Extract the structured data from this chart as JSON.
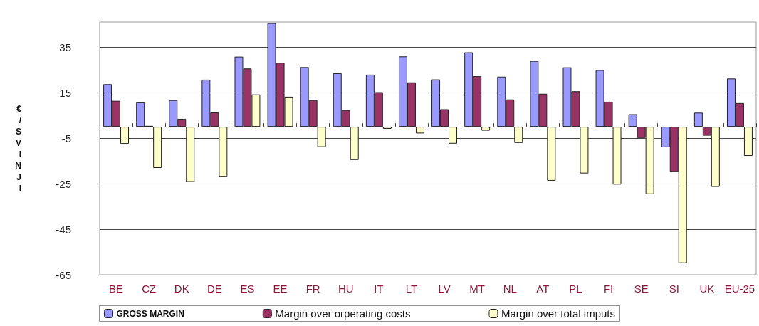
{
  "chart_data": {
    "type": "bar",
    "ylabel": "€ / SVINJI",
    "categories": [
      "BE",
      "CZ",
      "DK",
      "DE",
      "ES",
      "EE",
      "FR",
      "HU",
      "IT",
      "LT",
      "LV",
      "MT",
      "NL",
      "AT",
      "PL",
      "FI",
      "SE",
      "SI",
      "UK",
      "EU-25"
    ],
    "series": [
      {
        "name": "GROSS MARGIN",
        "color": "#9999ff",
        "values": [
          18.7,
          10.7,
          11.7,
          20.7,
          30.8,
          45.5,
          26.2,
          23.5,
          22.9,
          30.9,
          20.8,
          32.7,
          22.0,
          28.9,
          26.1,
          24.9,
          5.5,
          -9.0,
          6.2,
          21.2
        ]
      },
      {
        "name": "Margin over orperating costs",
        "color": "#993366",
        "values": [
          11.4,
          0.4,
          3.5,
          6.3,
          25.6,
          28.1,
          11.7,
          7.3,
          15.2,
          19.5,
          7.7,
          22.2,
          12.0,
          14.5,
          15.6,
          11.0,
          -4.9,
          -19.8,
          -3.9,
          10.4
        ]
      },
      {
        "name": "Margin over total imputs",
        "color": "#ffffcc",
        "values": [
          -7.5,
          -18.1,
          -24.2,
          -21.9,
          14.2,
          13.2,
          -8.9,
          -14.6,
          -0.9,
          -2.9,
          -7.4,
          -1.7,
          -7.1,
          -23.7,
          -20.5,
          -25.4,
          -29.6,
          -59.9,
          -26.4,
          -12.8
        ]
      }
    ],
    "ylim": [
      -65,
      46
    ],
    "yticks": [
      -65,
      -45,
      -25,
      -5,
      15,
      35
    ],
    "grid": "y",
    "legend": "bottom"
  }
}
